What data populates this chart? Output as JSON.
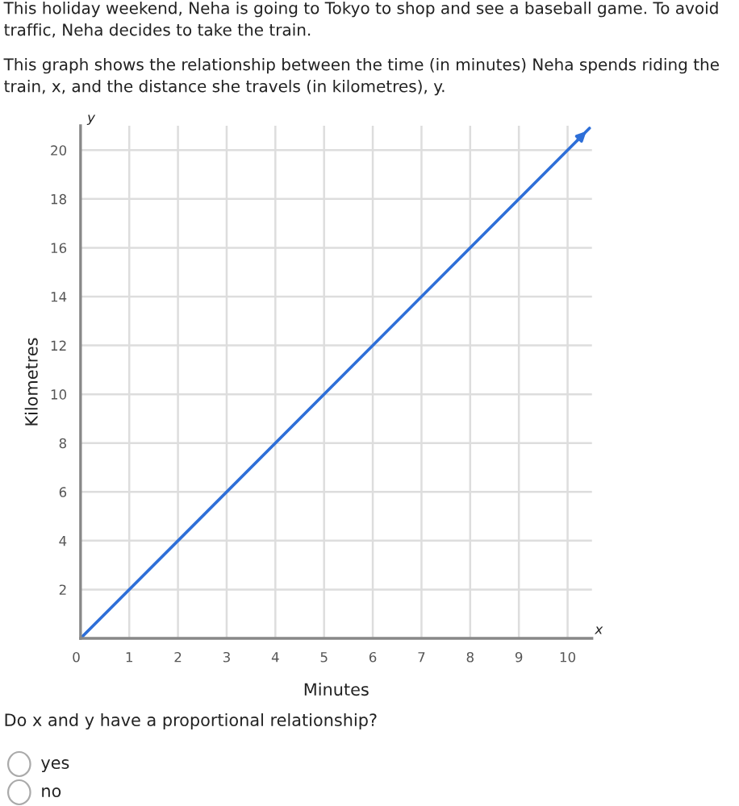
{
  "chart_data": {
    "type": "line",
    "title": "This holiday weekend, Neha is going to Tokyo to shop and see a baseball game. To avoid traffic, Neha decides to take the train.",
    "subtitle": "This graph shows the relationship between the time (in minutes) Neha spends riding the train, x, and the distance she travels (in kilometres), y.",
    "xlabel": "Minutes",
    "ylabel": "Kilometres",
    "annotations": [
      "y",
      "x",
      "Do x and y have a proportional relationship?",
      "yes",
      "no"
    ],
    "series": [
      {
        "color": "#2e6fd8",
        "x": [
          0,
          10.45
        ],
        "values": [
          0,
          20.9
        ]
      }
    ],
    "xlim": [
      0,
      10.5
    ],
    "ylim": [
      0,
      21
    ],
    "xticks": [
      {
        "value": 0,
        "label": "0"
      },
      1,
      2,
      3,
      4,
      5,
      6,
      7,
      8,
      9,
      10
    ],
    "yticks": [
      {
        "value": 0,
        "label": null
      },
      2,
      4,
      6,
      8,
      10,
      12,
      14,
      16,
      18,
      20
    ],
    "grid": true,
    "marker": "none",
    "line_style": "solid",
    "legend": false
  }
}
